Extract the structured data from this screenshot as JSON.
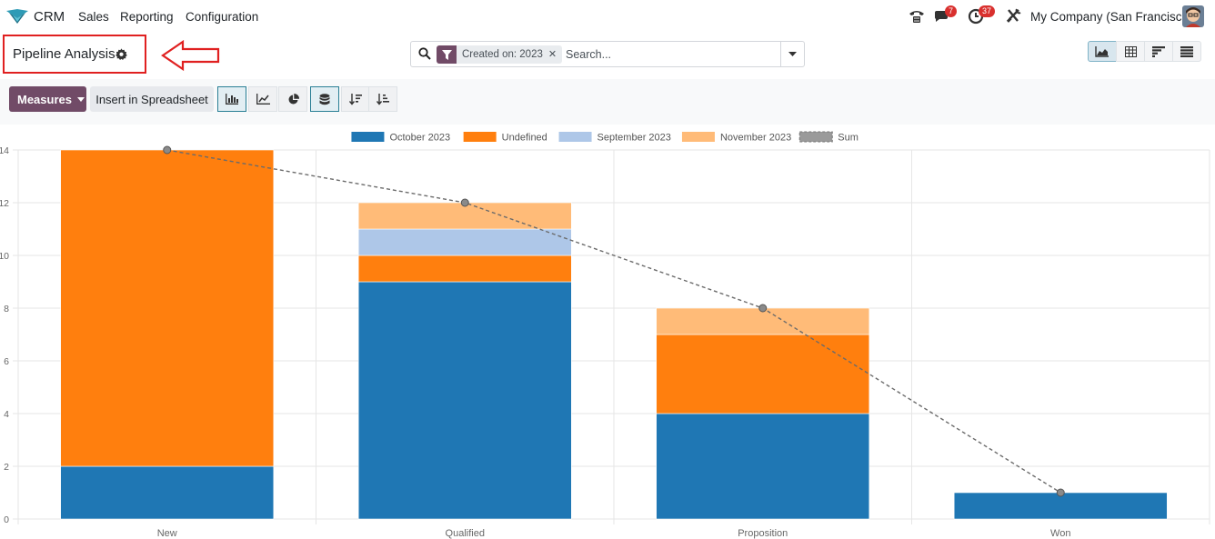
{
  "app": {
    "name": "CRM"
  },
  "nav": {
    "menu": [
      "Sales",
      "Reporting",
      "Configuration"
    ]
  },
  "systray": {
    "messages_count": "7",
    "activities_count": "37",
    "company": "My Company (San Francisco)"
  },
  "control_panel": {
    "title": "Pipeline Analysis",
    "facet_value": "Created on: 2023",
    "search_placeholder": "Search...",
    "measures_label": "Measures",
    "insert_label": "Insert in Spreadsheet"
  },
  "colors": {
    "brand": "#714b67",
    "annotation": "#e02020"
  },
  "chart_data": {
    "type": "bar",
    "stacked": true,
    "categories": [
      "New",
      "Qualified",
      "Proposition",
      "Won"
    ],
    "ylim": [
      0,
      14
    ],
    "yticks": [
      0,
      2,
      4,
      6,
      8,
      10,
      12,
      14
    ],
    "grid": true,
    "legend_position": "top",
    "series": [
      {
        "name": "October 2023",
        "color": "#1f77b4",
        "values": [
          2,
          9,
          4,
          1
        ]
      },
      {
        "name": "Undefined",
        "color": "#ff7f0e",
        "values": [
          12,
          1,
          3,
          0
        ]
      },
      {
        "name": "September 2023",
        "color": "#aec7e8",
        "values": [
          0,
          1,
          0,
          0
        ]
      },
      {
        "name": "November 2023",
        "color": "#ffbb78",
        "values": [
          0,
          1,
          1,
          0
        ]
      }
    ],
    "line": {
      "name": "Sum",
      "type": "line",
      "style": "dashed",
      "color": "#6b6b6b",
      "values": [
        14,
        12,
        8,
        1
      ]
    }
  }
}
